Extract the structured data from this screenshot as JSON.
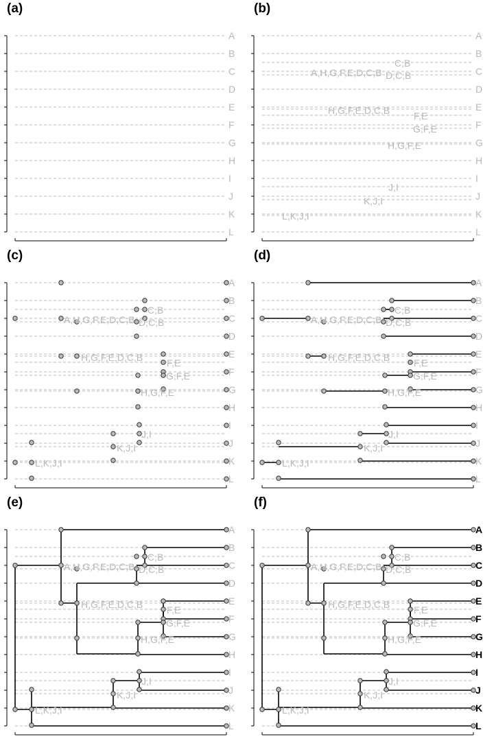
{
  "panel_labels": [
    "(a)",
    "(b)",
    "(c)",
    "(d)",
    "(e)",
    "(f)"
  ],
  "tips": [
    "A",
    "B",
    "C",
    "D",
    "E",
    "F",
    "G",
    "H",
    "I",
    "J",
    "K",
    "L"
  ],
  "clusters": [
    {
      "label": "C,B",
      "ref": "C"
    },
    {
      "label": "A,H,G,F,E,D,C,B",
      "ref": "C"
    },
    {
      "label": "D,C,B",
      "ref": "C"
    },
    {
      "label": "H,G,F,E,D,C,B",
      "ref": "E"
    },
    {
      "label": "F,E",
      "ref": "E"
    },
    {
      "label": "G,F,E",
      "ref": "F"
    },
    {
      "label": "H,G,F,E",
      "ref": "G"
    },
    {
      "label": "J,I",
      "ref": "I"
    },
    {
      "label": "K,J,I",
      "ref": "J"
    },
    {
      "label": "L,K,J,I",
      "ref": "K"
    }
  ],
  "colors": {
    "background": "#ffffff",
    "guide": "#bbbbbb",
    "faded_text": "#b8b8b8",
    "branch": "#000000",
    "node_fill": "#bbbbbb",
    "node_stroke": "#333333"
  }
}
